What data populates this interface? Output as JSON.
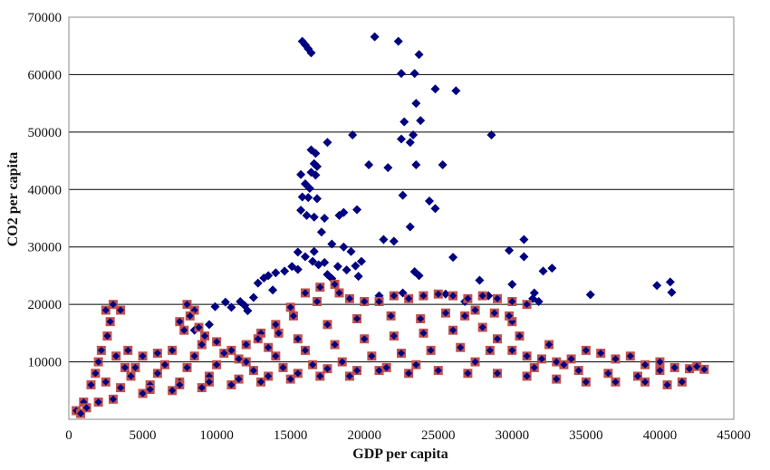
{
  "chart_data": {
    "type": "scatter",
    "title": "",
    "xlabel": "GDP per capita",
    "ylabel": "CO2 per capita",
    "xlim": [
      0,
      45000
    ],
    "ylim": [
      0,
      70000
    ],
    "x_ticks": [
      "0",
      "5000",
      "10000",
      "15000",
      "20000",
      "25000",
      "30000",
      "35000",
      "40000",
      "45000"
    ],
    "y_ticks": [
      "10000",
      "20000",
      "30000",
      "40000",
      "50000",
      "60000",
      "70000"
    ],
    "grid": "horizontal",
    "legend": "none",
    "series": [
      {
        "marker": "diamond",
        "color": "#000080",
        "points": [
          [
            15800,
            65800
          ],
          [
            16000,
            65200
          ],
          [
            16200,
            64500
          ],
          [
            16400,
            63800
          ],
          [
            20700,
            66600
          ],
          [
            22300,
            65800
          ],
          [
            23700,
            63500
          ],
          [
            22500,
            60200
          ],
          [
            23400,
            60200
          ],
          [
            24800,
            57500
          ],
          [
            26200,
            57200
          ],
          [
            23500,
            55000
          ],
          [
            23800,
            52000
          ],
          [
            22700,
            51800
          ],
          [
            23300,
            49500
          ],
          [
            22500,
            48800
          ],
          [
            23100,
            48200
          ],
          [
            19200,
            49500
          ],
          [
            28600,
            49500
          ],
          [
            17500,
            48200
          ],
          [
            16400,
            46900
          ],
          [
            16700,
            46300
          ],
          [
            16600,
            44500
          ],
          [
            16800,
            44000
          ],
          [
            16400,
            43000
          ],
          [
            16700,
            42500
          ],
          [
            15700,
            42600
          ],
          [
            16000,
            41000
          ],
          [
            16300,
            40200
          ],
          [
            16200,
            38600
          ],
          [
            16800,
            38400
          ],
          [
            15800,
            38700
          ],
          [
            15700,
            36400
          ],
          [
            16100,
            35500
          ],
          [
            16600,
            35200
          ],
          [
            17300,
            35000
          ],
          [
            18300,
            35500
          ],
          [
            18600,
            36000
          ],
          [
            19500,
            36500
          ],
          [
            22600,
            39000
          ],
          [
            20300,
            44300
          ],
          [
            21600,
            43800
          ],
          [
            23500,
            44300
          ],
          [
            25300,
            44300
          ],
          [
            24400,
            38000
          ],
          [
            24800,
            36700
          ],
          [
            23100,
            33500
          ],
          [
            22000,
            31000
          ],
          [
            21300,
            31300
          ],
          [
            17100,
            32600
          ],
          [
            17800,
            30500
          ],
          [
            18600,
            30000
          ],
          [
            19100,
            29200
          ],
          [
            19800,
            27500
          ],
          [
            19400,
            26700
          ],
          [
            16600,
            29200
          ],
          [
            15500,
            29100
          ],
          [
            16000,
            28300
          ],
          [
            17300,
            27300
          ],
          [
            16900,
            26900
          ],
          [
            15500,
            26100
          ],
          [
            15100,
            26600
          ],
          [
            14600,
            25800
          ],
          [
            14000,
            25500
          ],
          [
            13500,
            25000
          ],
          [
            13200,
            24600
          ],
          [
            12800,
            23700
          ],
          [
            16500,
            27500
          ],
          [
            18200,
            26600
          ],
          [
            18800,
            26000
          ],
          [
            19600,
            24900
          ],
          [
            17500,
            25200
          ],
          [
            17800,
            24500
          ],
          [
            23400,
            25700
          ],
          [
            23700,
            25000
          ],
          [
            26000,
            28200
          ],
          [
            29800,
            29400
          ],
          [
            30800,
            31300
          ],
          [
            30800,
            28300
          ],
          [
            31500,
            22000
          ],
          [
            32100,
            25800
          ],
          [
            32700,
            26300
          ],
          [
            31400,
            21000
          ],
          [
            31800,
            20500
          ],
          [
            35300,
            21700
          ],
          [
            39800,
            23300
          ],
          [
            40700,
            23900
          ],
          [
            40800,
            22100
          ],
          [
            10600,
            20400
          ],
          [
            11000,
            19500
          ],
          [
            11600,
            20500
          ],
          [
            11900,
            19800
          ],
          [
            12100,
            18900
          ],
          [
            9900,
            19600
          ],
          [
            8500,
            15500
          ],
          [
            9500,
            16500
          ],
          [
            27800,
            24200
          ],
          [
            30000,
            23500
          ],
          [
            28400,
            21500
          ],
          [
            26800,
            20500
          ],
          [
            21000,
            21500
          ],
          [
            22600,
            22000
          ],
          [
            25500,
            21800
          ],
          [
            12500,
            21200
          ],
          [
            13800,
            22500
          ]
        ]
      },
      {
        "marker": "square",
        "color": "#C0504D",
        "description_in_image": false,
        "points": [
          [
            500,
            1500
          ],
          [
            1000,
            3000
          ],
          [
            1500,
            6000
          ],
          [
            2000,
            10000
          ],
          [
            2500,
            19000
          ],
          [
            3000,
            20000
          ],
          [
            3500,
            19000
          ],
          [
            2800,
            17000
          ],
          [
            4000,
            12000
          ],
          [
            5000,
            11000
          ],
          [
            6000,
            11500
          ],
          [
            7000,
            12000
          ],
          [
            7500,
            17000
          ],
          [
            8000,
            20000
          ],
          [
            8500,
            19000
          ],
          [
            9000,
            13000
          ],
          [
            10000,
            13500
          ],
          [
            11000,
            12000
          ],
          [
            12000,
            13000
          ],
          [
            13000,
            15000
          ],
          [
            14000,
            16500
          ],
          [
            15000,
            19500
          ],
          [
            16000,
            22000
          ],
          [
            17000,
            23000
          ],
          [
            18000,
            23500
          ],
          [
            19000,
            21000
          ],
          [
            20000,
            20500
          ],
          [
            21000,
            20500
          ],
          [
            22000,
            21500
          ],
          [
            23000,
            21000
          ],
          [
            24000,
            21500
          ],
          [
            25000,
            21800
          ],
          [
            26000,
            21500
          ],
          [
            27000,
            21000
          ],
          [
            28000,
            21500
          ],
          [
            29000,
            21000
          ],
          [
            30000,
            20500
          ],
          [
            31000,
            20000
          ],
          [
            29000,
            14000
          ],
          [
            30000,
            12000
          ],
          [
            31000,
            11000
          ],
          [
            32000,
            10500
          ],
          [
            33000,
            10000
          ],
          [
            34000,
            10500
          ],
          [
            35000,
            12000
          ],
          [
            36000,
            11500
          ],
          [
            37000,
            10500
          ],
          [
            38000,
            11000
          ],
          [
            39000,
            9500
          ],
          [
            40000,
            10000
          ],
          [
            41000,
            9000
          ],
          [
            42000,
            8800
          ],
          [
            43000,
            8700
          ],
          [
            40500,
            6000
          ],
          [
            39000,
            6500
          ],
          [
            37000,
            6500
          ],
          [
            35000,
            6500
          ],
          [
            33000,
            7000
          ],
          [
            31000,
            7500
          ],
          [
            29000,
            8000
          ],
          [
            27000,
            8000
          ],
          [
            25000,
            8500
          ],
          [
            23000,
            8000
          ],
          [
            21000,
            8500
          ],
          [
            19000,
            7500
          ],
          [
            17000,
            7500
          ],
          [
            15000,
            7000
          ],
          [
            13000,
            6500
          ],
          [
            11000,
            6000
          ],
          [
            9000,
            5500
          ],
          [
            7000,
            5000
          ],
          [
            5000,
            4500
          ],
          [
            3000,
            3500
          ],
          [
            2000,
            3000
          ],
          [
            1200,
            2000
          ],
          [
            800,
            1000
          ],
          [
            4500,
            9000
          ],
          [
            6000,
            8000
          ],
          [
            8000,
            9000
          ],
          [
            10000,
            9500
          ],
          [
            12000,
            10000
          ],
          [
            14000,
            11000
          ],
          [
            16000,
            12000
          ],
          [
            18000,
            13000
          ],
          [
            20000,
            14000
          ],
          [
            22000,
            14500
          ],
          [
            24000,
            15000
          ],
          [
            26000,
            15500
          ],
          [
            28000,
            16000
          ],
          [
            30000,
            17000
          ],
          [
            25500,
            18500
          ],
          [
            27500,
            19000
          ],
          [
            19500,
            17500
          ],
          [
            17500,
            16500
          ],
          [
            15500,
            14000
          ],
          [
            13500,
            12500
          ],
          [
            11500,
            10500
          ],
          [
            9500,
            7500
          ],
          [
            7500,
            6500
          ],
          [
            5500,
            6000
          ],
          [
            3500,
            5500
          ],
          [
            2500,
            6500
          ],
          [
            1800,
            8000
          ],
          [
            2200,
            12000
          ],
          [
            2600,
            14500
          ],
          [
            3200,
            11000
          ],
          [
            3800,
            9000
          ],
          [
            4200,
            7500
          ],
          [
            6500,
            9500
          ],
          [
            8500,
            11000
          ],
          [
            10500,
            11500
          ],
          [
            12500,
            8500
          ],
          [
            14500,
            9000
          ],
          [
            16500,
            9500
          ],
          [
            18500,
            10000
          ],
          [
            20500,
            11000
          ],
          [
            22500,
            11500
          ],
          [
            24500,
            12000
          ],
          [
            26500,
            12500
          ],
          [
            28500,
            12000
          ],
          [
            30500,
            14500
          ],
          [
            32500,
            13000
          ],
          [
            34500,
            8500
          ],
          [
            36500,
            8000
          ],
          [
            38500,
            7500
          ],
          [
            40000,
            8500
          ],
          [
            41500,
            6500
          ],
          [
            42500,
            9200
          ],
          [
            33500,
            9500
          ],
          [
            31500,
            9000
          ],
          [
            27500,
            10000
          ],
          [
            23500,
            9500
          ],
          [
            21500,
            9000
          ],
          [
            19500,
            8500
          ],
          [
            17500,
            8800
          ],
          [
            15500,
            8000
          ],
          [
            13500,
            7500
          ],
          [
            11500,
            7000
          ],
          [
            9500,
            6500
          ],
          [
            7500,
            6000
          ],
          [
            5500,
            5200
          ],
          [
            8200,
            18000
          ],
          [
            8800,
            16000
          ],
          [
            9200,
            14500
          ],
          [
            7800,
            15500
          ],
          [
            18300,
            22000
          ],
          [
            16800,
            20500
          ],
          [
            15200,
            18000
          ],
          [
            14200,
            15000
          ],
          [
            12800,
            14000
          ],
          [
            21800,
            18000
          ],
          [
            23800,
            17500
          ],
          [
            26800,
            18000
          ],
          [
            28800,
            18500
          ],
          [
            29800,
            18000
          ]
        ]
      }
    ]
  }
}
